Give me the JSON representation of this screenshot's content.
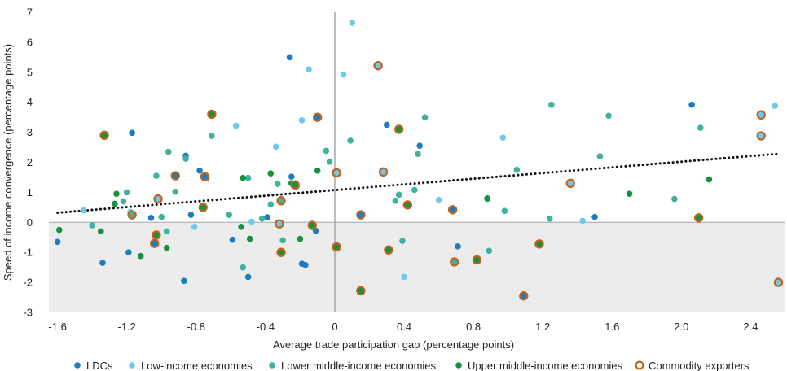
{
  "colors": {
    "ldc": "#1b7dc0",
    "low_income": "#6fc8ee",
    "lower_middle": "#3fb29c",
    "upper_middle": "#16923f",
    "commodity_ring": "#c4621b",
    "shade": "#ececec",
    "trend": "#111111",
    "zero_line": "#a6a6a6"
  },
  "chart_data": {
    "type": "scatter",
    "title": "",
    "xlabel": "Average trade participation gap (percentage points)",
    "ylabel": "Speed of income convergence (percentage points)",
    "xlim": [
      -1.65,
      2.6
    ],
    "ylim": [
      -3,
      7
    ],
    "x_ticks": [
      "-1.6",
      "-1.2",
      "-0.8",
      "-0.4",
      "0",
      "0.4",
      "0.8",
      "1.2",
      "1.6",
      "2.0",
      "2.4"
    ],
    "x_tick_values": [
      -1.6,
      -1.2,
      -0.8,
      -0.4,
      0,
      0.4,
      0.8,
      1.2,
      1.6,
      2.0,
      2.4
    ],
    "y_ticks": [
      "7",
      "6",
      "5",
      "4",
      "3",
      "2",
      "1",
      "0",
      "-1",
      "-2",
      "-3"
    ],
    "y_tick_values": [
      7,
      6,
      5,
      4,
      3,
      2,
      1,
      0,
      -1,
      -2,
      -3
    ],
    "trend_line": {
      "style": "dotted",
      "x": [
        -1.6,
        2.55
      ],
      "y": [
        0.32,
        2.28
      ]
    },
    "shaded_region": "y < 0",
    "legend": {
      "position": "bottom",
      "entries": [
        {
          "key": "ldc",
          "label": "LDCs"
        },
        {
          "key": "low_income",
          "label": "Low-income economies"
        },
        {
          "key": "lower_middle",
          "label": "Lower middle-income economies"
        },
        {
          "key": "upper_middle",
          "label": "Upper middle-income economies"
        },
        {
          "key": "commodity",
          "label": "Commodity exporters"
        }
      ]
    },
    "series": [
      {
        "key": "ldc",
        "name": "LDCs",
        "points": [
          {
            "x": -1.6,
            "y": -0.65
          },
          {
            "x": -1.34,
            "y": -1.35
          },
          {
            "x": -1.17,
            "y": 2.98
          },
          {
            "x": -1.19,
            "y": -1.0
          },
          {
            "x": -1.06,
            "y": 0.15
          },
          {
            "x": -0.86,
            "y": 2.22
          },
          {
            "x": -0.87,
            "y": -1.95
          },
          {
            "x": -0.83,
            "y": 0.25
          },
          {
            "x": -0.78,
            "y": 1.72
          },
          {
            "x": -0.74,
            "y": 1.48
          },
          {
            "x": -0.59,
            "y": -0.58
          },
          {
            "x": -0.5,
            "y": -1.82
          },
          {
            "x": -0.39,
            "y": 0.17
          },
          {
            "x": -0.26,
            "y": 5.5
          },
          {
            "x": -0.25,
            "y": 1.52
          },
          {
            "x": -0.19,
            "y": -1.38
          },
          {
            "x": -0.17,
            "y": -1.42
          },
          {
            "x": -0.11,
            "y": -0.28
          },
          {
            "x": 0.3,
            "y": 3.25
          },
          {
            "x": 0.49,
            "y": 2.55
          },
          {
            "x": 0.71,
            "y": -0.8
          },
          {
            "x": 1.5,
            "y": 0.18
          },
          {
            "x": 2.06,
            "y": 3.92
          }
        ]
      },
      {
        "key": "low_income",
        "name": "Low-income economies",
        "points": [
          {
            "x": -1.45,
            "y": 0.4
          },
          {
            "x": -1.18,
            "y": 0.35
          },
          {
            "x": -0.81,
            "y": -0.15
          },
          {
            "x": -0.57,
            "y": 3.22
          },
          {
            "x": -0.48,
            "y": 0.02
          },
          {
            "x": -0.34,
            "y": 2.52
          },
          {
            "x": -0.19,
            "y": 3.4
          },
          {
            "x": -0.15,
            "y": 5.1
          },
          {
            "x": 0.05,
            "y": 4.92
          },
          {
            "x": 0.1,
            "y": 6.65
          },
          {
            "x": 0.4,
            "y": -1.82
          },
          {
            "x": 0.6,
            "y": 0.75
          },
          {
            "x": 0.97,
            "y": 2.82
          },
          {
            "x": 1.43,
            "y": 0.05
          },
          {
            "x": 2.54,
            "y": 3.88
          }
        ]
      },
      {
        "key": "lower_middle",
        "name": "Lower middle-income economies",
        "points": [
          {
            "x": -1.4,
            "y": -0.1
          },
          {
            "x": -1.22,
            "y": 0.7
          },
          {
            "x": -1.2,
            "y": 1.0
          },
          {
            "x": -1.03,
            "y": 1.55
          },
          {
            "x": -1.0,
            "y": 0.18
          },
          {
            "x": -0.97,
            "y": -0.3
          },
          {
            "x": -0.96,
            "y": 2.35
          },
          {
            "x": -0.92,
            "y": 1.02
          },
          {
            "x": -0.86,
            "y": 2.12
          },
          {
            "x": -0.71,
            "y": 2.88
          },
          {
            "x": -0.61,
            "y": 0.25
          },
          {
            "x": -0.53,
            "y": -1.5
          },
          {
            "x": -0.5,
            "y": 1.48
          },
          {
            "x": -0.42,
            "y": 0.12
          },
          {
            "x": -0.37,
            "y": 0.6
          },
          {
            "x": -0.33,
            "y": 1.28
          },
          {
            "x": -0.3,
            "y": -0.6
          },
          {
            "x": -0.22,
            "y": 1.2
          },
          {
            "x": -0.05,
            "y": 2.38
          },
          {
            "x": -0.03,
            "y": 2.02
          },
          {
            "x": 0.09,
            "y": 2.72
          },
          {
            "x": 0.35,
            "y": 0.72
          },
          {
            "x": 0.37,
            "y": 0.92
          },
          {
            "x": 0.39,
            "y": -0.62
          },
          {
            "x": 0.46,
            "y": 1.08
          },
          {
            "x": 0.48,
            "y": 2.28
          },
          {
            "x": 0.52,
            "y": 3.5
          },
          {
            "x": 0.88,
            "y": 0.78
          },
          {
            "x": 0.89,
            "y": -0.95
          },
          {
            "x": 0.98,
            "y": 0.38
          },
          {
            "x": 1.05,
            "y": 1.75
          },
          {
            "x": 1.24,
            "y": 0.12
          },
          {
            "x": 1.25,
            "y": 3.92
          },
          {
            "x": 1.53,
            "y": 2.2
          },
          {
            "x": 1.58,
            "y": 3.55
          },
          {
            "x": 1.96,
            "y": 0.78
          },
          {
            "x": 2.11,
            "y": 3.15
          }
        ]
      },
      {
        "key": "upper_middle",
        "name": "Upper middle-income economies",
        "points": [
          {
            "x": -1.59,
            "y": -0.25
          },
          {
            "x": -1.35,
            "y": -0.3
          },
          {
            "x": -1.27,
            "y": 0.62
          },
          {
            "x": -1.26,
            "y": 0.95
          },
          {
            "x": -1.12,
            "y": -1.12
          },
          {
            "x": -0.97,
            "y": -0.85
          },
          {
            "x": -0.54,
            "y": -0.15
          },
          {
            "x": -0.53,
            "y": 1.48
          },
          {
            "x": -0.49,
            "y": -0.55
          },
          {
            "x": -0.37,
            "y": 1.63
          },
          {
            "x": -0.25,
            "y": 1.3
          },
          {
            "x": -0.2,
            "y": -0.55
          },
          {
            "x": -0.1,
            "y": 1.72
          },
          {
            "x": 0.88,
            "y": 0.8
          },
          {
            "x": 1.7,
            "y": 0.95
          },
          {
            "x": 2.16,
            "y": 1.43
          }
        ]
      },
      {
        "key": "commodity",
        "name": "Commodity exporters",
        "points": [
          {
            "x": -1.33,
            "y": 2.9,
            "fill": "upper_middle"
          },
          {
            "x": -1.17,
            "y": 0.25,
            "fill": "lower_middle"
          },
          {
            "x": -1.04,
            "y": -0.7,
            "fill": "ldc"
          },
          {
            "x": -1.03,
            "y": -0.42,
            "fill": "upper_middle"
          },
          {
            "x": -1.02,
            "y": 0.78,
            "fill": "low_income"
          },
          {
            "x": -0.92,
            "y": 1.55,
            "fill": "ldc"
          },
          {
            "x": -0.76,
            "y": 0.5,
            "fill": "upper_middle"
          },
          {
            "x": -0.75,
            "y": 1.52,
            "fill": "ldc"
          },
          {
            "x": -0.71,
            "y": 3.6,
            "fill": "upper_middle"
          },
          {
            "x": -0.31,
            "y": 0.72,
            "fill": "lower_middle"
          },
          {
            "x": -0.32,
            "y": -0.05,
            "fill": "low_income"
          },
          {
            "x": -0.31,
            "y": -1.0,
            "fill": "upper_middle"
          },
          {
            "x": -0.23,
            "y": 1.25,
            "fill": "upper_middle"
          },
          {
            "x": -0.13,
            "y": -0.1,
            "fill": "upper_middle"
          },
          {
            "x": -0.1,
            "y": 3.5,
            "fill": "ldc"
          },
          {
            "x": 0.01,
            "y": 1.65,
            "fill": "low_income"
          },
          {
            "x": 0.01,
            "y": -0.82,
            "fill": "upper_middle"
          },
          {
            "x": 0.15,
            "y": -2.28,
            "fill": "upper_middle"
          },
          {
            "x": 0.15,
            "y": 0.25,
            "fill": "ldc"
          },
          {
            "x": 0.25,
            "y": 5.22,
            "fill": "low_income"
          },
          {
            "x": 0.28,
            "y": 1.68,
            "fill": "low_income"
          },
          {
            "x": 0.31,
            "y": -0.92,
            "fill": "upper_middle"
          },
          {
            "x": 0.37,
            "y": 3.1,
            "fill": "upper_middle"
          },
          {
            "x": 0.42,
            "y": 0.58,
            "fill": "upper_middle"
          },
          {
            "x": 0.68,
            "y": 0.42,
            "fill": "ldc"
          },
          {
            "x": 0.69,
            "y": -1.32,
            "fill": "lower_middle"
          },
          {
            "x": 0.82,
            "y": -1.25,
            "fill": "upper_middle"
          },
          {
            "x": 1.09,
            "y": -2.45,
            "fill": "ldc"
          },
          {
            "x": 1.18,
            "y": -0.72,
            "fill": "upper_middle"
          },
          {
            "x": 1.36,
            "y": 1.3,
            "fill": "low_income"
          },
          {
            "x": 2.1,
            "y": 0.15,
            "fill": "upper_middle"
          },
          {
            "x": 2.46,
            "y": 3.58,
            "fill": "low_income"
          },
          {
            "x": 2.46,
            "y": 2.88,
            "fill": "low_income"
          },
          {
            "x": 2.56,
            "y": -2.0,
            "fill": "low_income"
          }
        ]
      }
    ]
  }
}
